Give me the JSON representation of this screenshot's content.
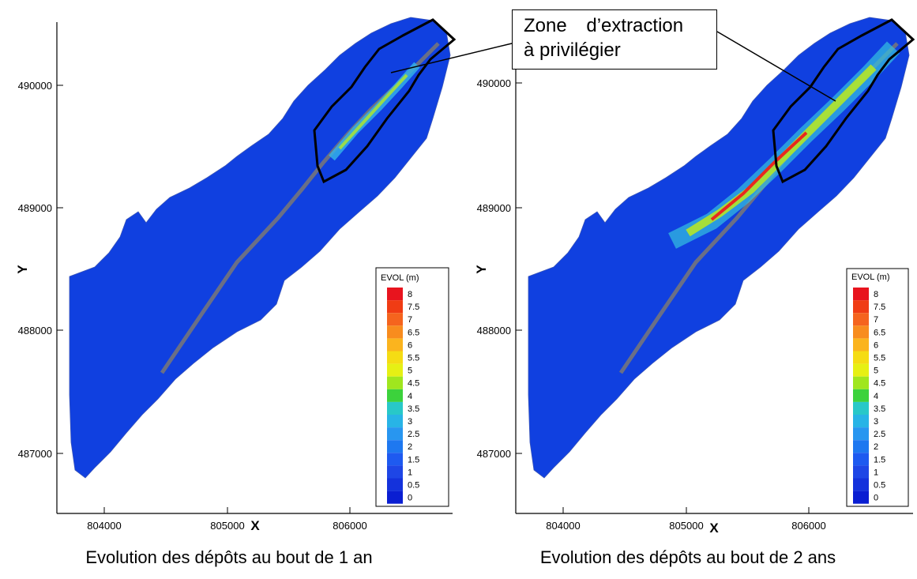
{
  "panels": [
    {
      "id": "left",
      "caption": "Evolution des dépôts au bout de 1 an",
      "x_ticks": [
        "804000",
        "805000",
        "806000"
      ],
      "y_ticks": [
        "490000",
        "489000",
        "488000",
        "487000"
      ],
      "x_label": "X",
      "y_label": "Y",
      "legend_title": "EVOL (m)"
    },
    {
      "id": "right",
      "caption": "Evolution des dépôts au bout de 2 ans",
      "x_ticks": [
        "804000",
        "805000",
        "806000"
      ],
      "y_ticks": [
        "490000",
        "489000",
        "488000",
        "487000"
      ],
      "x_label": "X",
      "y_label": "Y",
      "legend_title": "EVOL (m)"
    }
  ],
  "legend_levels": [
    "8",
    "7.5",
    "7",
    "6.5",
    "6",
    "5.5",
    "5",
    "4.5",
    "4",
    "3.5",
    "3",
    "2.5",
    "2",
    "1.5",
    "1",
    "0.5",
    "0"
  ],
  "legend_colors": [
    "#e8141e",
    "#f03c14",
    "#f5641e",
    "#f88c1e",
    "#fbb41e",
    "#f5dc14",
    "#e6f014",
    "#a0e61e",
    "#3cd23c",
    "#28c8c8",
    "#28b4e6",
    "#2896f0",
    "#1e78f0",
    "#1e5af0",
    "#1e46e6",
    "#1432dc",
    "#0a1ed2"
  ],
  "callout": {
    "line1": "Zone d’extraction",
    "line2": "à privilégier"
  }
}
